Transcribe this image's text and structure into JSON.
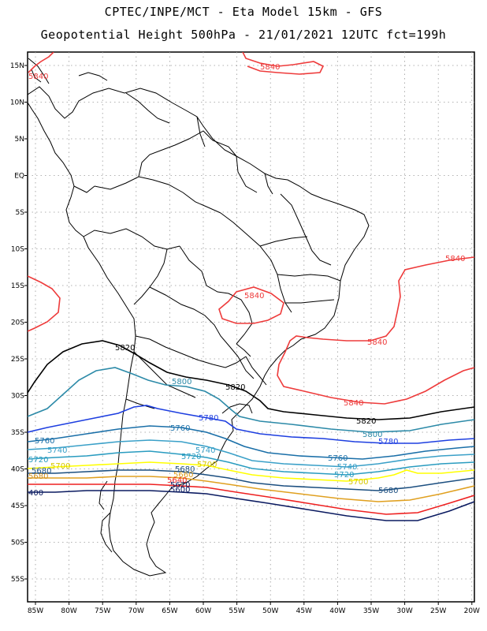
{
  "title_line1": "CPTEC/INPE/MCT -  Eta Model 15km - GFS",
  "title_line2": "Geopotential Height 500hPa - 21/01/2021 12UTC fct=199h",
  "lat_ticks": [
    "15N",
    "10N",
    "5N",
    "EQ",
    "5S",
    "10S",
    "15S",
    "20S",
    "25S",
    "30S",
    "35S",
    "40S",
    "45S",
    "50S",
    "55S"
  ],
  "lon_ticks": [
    "85W",
    "80W",
    "75W",
    "70W",
    "65W",
    "60W",
    "55W",
    "50W",
    "45W",
    "40W",
    "35W",
    "30W",
    "25W",
    "20W"
  ],
  "contour_colors": {
    "5840": "#ee3b3b",
    "5820": "#000000",
    "5800": "#2c8aa8",
    "5780": "#1e3fe0",
    "5760": "#1a6fa8",
    "5740": "#3aa0c8",
    "5720": "#2a9cc0",
    "5700": "#ffff00",
    "5680": "#1c4f80",
    "5660": "#e0a020",
    "5640": "#ee2020",
    "5620": "#0a1a60"
  },
  "contour_labels": [
    {
      "text": "5840",
      "color": "#ee3b3b"
    },
    {
      "text": "5840",
      "color": "#ee3b3b"
    },
    {
      "text": "5840",
      "color": "#ee3b3b"
    },
    {
      "text": "5840",
      "color": "#ee3b3b"
    },
    {
      "text": "5840",
      "color": "#ee3b3b"
    },
    {
      "text": "5840",
      "color": "#ee3b3b"
    },
    {
      "text": "5820",
      "color": "#000000"
    },
    {
      "text": "5820",
      "color": "#000000"
    },
    {
      "text": "5820",
      "color": "#000000"
    },
    {
      "text": "5800",
      "color": "#2c8aa8"
    },
    {
      "text": "5800",
      "color": "#2c8aa8"
    },
    {
      "text": "5780",
      "color": "#1e3fe0"
    },
    {
      "text": "5780",
      "color": "#1e3fe0"
    },
    {
      "text": "5760",
      "color": "#1a6fa8"
    },
    {
      "text": "5760",
      "color": "#1a6fa8"
    },
    {
      "text": "5760",
      "color": "#1a6fa8"
    },
    {
      "text": "5740",
      "color": "#3aa0c8"
    },
    {
      "text": "5740",
      "color": "#3aa0c8"
    },
    {
      "text": "5740",
      "color": "#3aa0c8"
    },
    {
      "text": "5720",
      "color": "#2a9cc0"
    },
    {
      "text": "5720",
      "color": "#2a9cc0"
    },
    {
      "text": "5720",
      "color": "#2a9cc0"
    },
    {
      "text": "5700",
      "color": "#d8c800"
    },
    {
      "text": "5700",
      "color": "#d8c800"
    },
    {
      "text": "5700",
      "color": "#d8c800"
    },
    {
      "text": "5680",
      "color": "#1c4f80"
    },
    {
      "text": "5680",
      "color": "#1c4f80"
    },
    {
      "text": "5680",
      "color": "#1c4f80"
    },
    {
      "text": "5680",
      "color": "#d09020"
    },
    {
      "text": "5660",
      "color": "#e0a020"
    },
    {
      "text": "5640",
      "color": "#ee2020"
    },
    {
      "text": "5620",
      "color": "#0a1a60"
    },
    {
      "text": "5600",
      "color": "#0a1a60"
    },
    {
      "text": "400",
      "color": "#0a1a60"
    }
  ]
}
